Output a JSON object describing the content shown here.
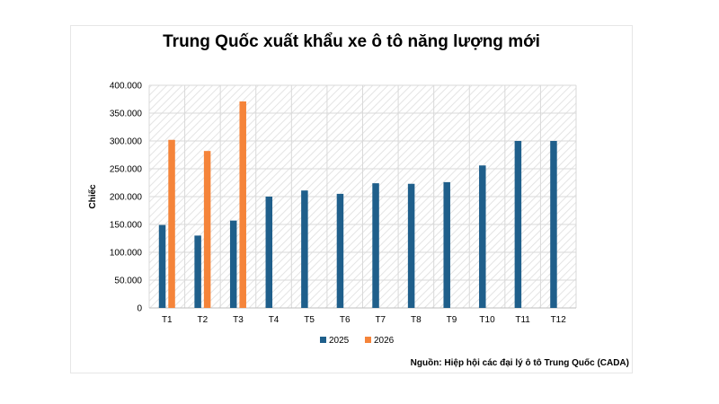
{
  "chart_data": {
    "type": "bar",
    "title": "Trung Quốc xuất khẩu xe ô tô năng lượng mới",
    "ylabel": "Chiếc",
    "xlabel": "",
    "categories": [
      "T1",
      "T2",
      "T3",
      "T4",
      "T5",
      "T6",
      "T7",
      "T8",
      "T9",
      "T10",
      "T11",
      "T12"
    ],
    "series": [
      {
        "name": "2025",
        "color": "#1f5f8b",
        "values": [
          149000,
          130000,
          157000,
          200000,
          211000,
          205000,
          224000,
          223000,
          226000,
          256000,
          300000,
          300000
        ]
      },
      {
        "name": "2026",
        "color": "#f5843a",
        "values": [
          302000,
          282000,
          371000,
          null,
          null,
          null,
          null,
          null,
          null,
          null,
          null,
          null
        ]
      }
    ],
    "ylim": [
      0,
      400000
    ],
    "yticks": [
      0,
      50000,
      100000,
      150000,
      200000,
      250000,
      300000,
      350000,
      400000
    ],
    "ytick_labels": [
      "0",
      "50.000",
      "100.000",
      "150.000",
      "200.000",
      "250.000",
      "300.000",
      "350.000",
      "400.000"
    ],
    "grid": true,
    "legend_position": "bottom",
    "source_note": "Nguồn: Hiệp hội các đại lý ô tô Trung Quốc (CADA)"
  }
}
